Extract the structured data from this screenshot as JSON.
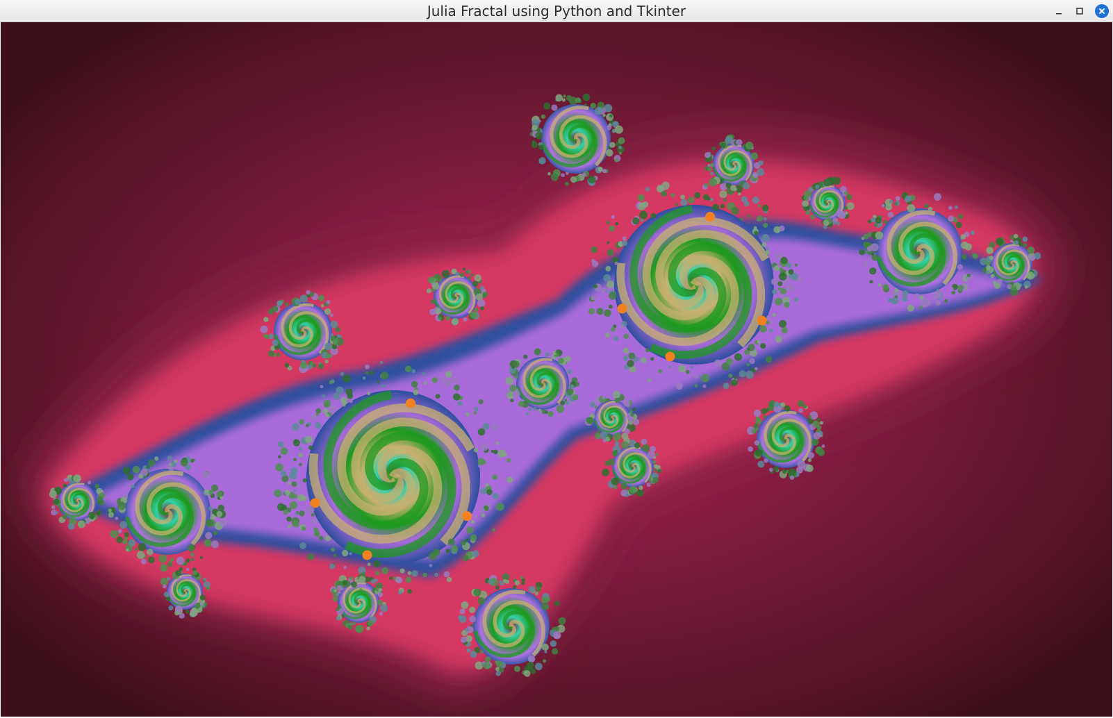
{
  "window": {
    "title": "Julia Fractal using Python and Tkinter",
    "controls": {
      "minimize_icon": "minimize-icon",
      "maximize_icon": "maximize-icon",
      "close_icon": "close-icon"
    }
  },
  "canvas": {
    "content": "julia-fractal",
    "colors": {
      "background_dark": "#45121f",
      "band_mid": "#7a1c3c",
      "band_pink": "#e0406e",
      "blue": "#2e4f9e",
      "violet": "#a86ad8",
      "magenta_light": "#e078e8",
      "green": "#1e9a1e",
      "tan": "#c8b070",
      "teal": "#36d0a8",
      "orange": "#f08020"
    }
  }
}
